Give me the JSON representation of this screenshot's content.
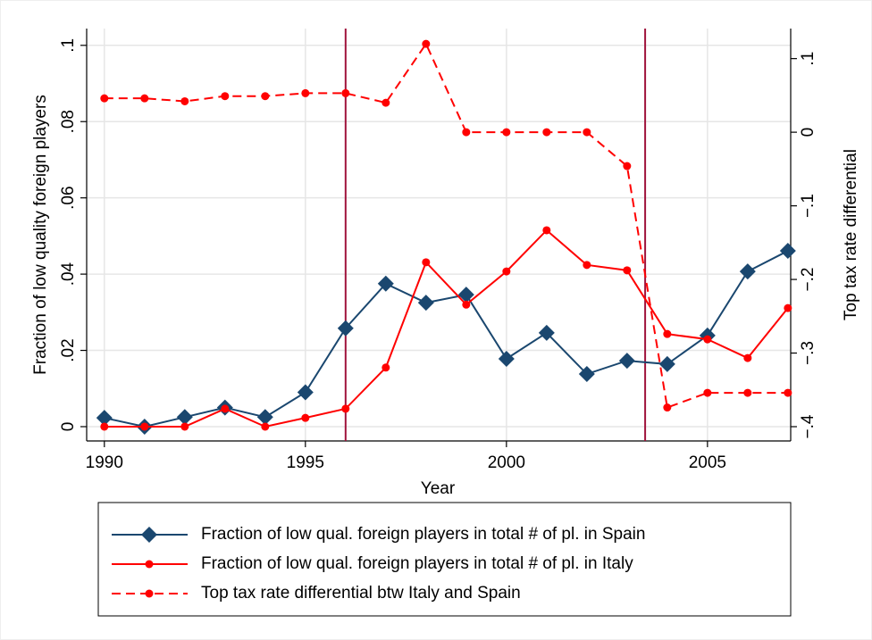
{
  "chart_data": {
    "type": "line",
    "x_label": "Year",
    "y_label": "Fraction of low quality foreign players",
    "y2_label": "Top tax rate differential",
    "x": [
      1990,
      1991,
      1992,
      1993,
      1994,
      1995,
      1996,
      1997,
      1998,
      1999,
      2000,
      2001,
      2002,
      2003,
      2004,
      2005,
      2006,
      2007
    ],
    "series": [
      {
        "name": "Fraction of low qual. foreign players in total # of pl. in Spain",
        "color": "#1a476f",
        "marker": "diamond",
        "line_style": "solid",
        "values": [
          0.0023,
          0,
          0.0025,
          0.005,
          0.0025,
          0.009,
          0.0258,
          0.0375,
          0.0325,
          0.0346,
          0.0178,
          0.0246,
          0.0138,
          0.0173,
          0.0164,
          0.0239,
          0.0407,
          0.0461
        ]
      },
      {
        "name": "Fraction of low qual. foreign players in total # of pl. in Italy",
        "color": "#ff0000",
        "marker": "circle",
        "line_style": "solid",
        "values": [
          0,
          0,
          0,
          0.0047,
          0,
          0.0023,
          0.0047,
          0.0155,
          0.0431,
          0.032,
          0.0407,
          0.0515,
          0.0424,
          0.041,
          0.0243,
          0.0229,
          0.018,
          0.0311
        ]
      },
      {
        "name": "Top tax rate differential btw Italy and Spain",
        "color": "#ff0000",
        "marker": "circle",
        "line_style": "dashed",
        "axis": "y2",
        "values": [
          0.046,
          0.046,
          0.042,
          0.049,
          0.049,
          0.053,
          0.053,
          0.04,
          0.12,
          0,
          0,
          0,
          0,
          -0.046,
          -0.374,
          -0.354,
          -0.354,
          -0.354
        ]
      }
    ],
    "vlines": [
      1996,
      2003.45
    ],
    "vline_color": "#a0143c",
    "xlim": [
      1989.56,
      2007.07
    ],
    "xticks": [
      1990,
      1995,
      2000,
      2005
    ],
    "ylim": [
      -0.00375,
      0.1044
    ],
    "yticks": [
      0,
      {
        "value": 0.02,
        "label": ".02"
      },
      {
        "value": 0.04,
        "label": ".04"
      },
      {
        "value": 0.06,
        "label": ".06"
      },
      {
        "value": 0.08,
        "label": ".08"
      },
      {
        "value": 0.1,
        "label": ".1"
      }
    ],
    "y2lim": [
      -0.4194,
      0.1408
    ],
    "y2ticks": [
      {
        "value": -0.4,
        "label": "−.4"
      },
      {
        "value": -0.3,
        "label": "−.3"
      },
      {
        "value": -0.2,
        "label": "−.2"
      },
      {
        "value": -0.1,
        "label": "−.1"
      },
      0,
      {
        "value": 0.1,
        "label": ".1"
      }
    ],
    "grid": true
  }
}
